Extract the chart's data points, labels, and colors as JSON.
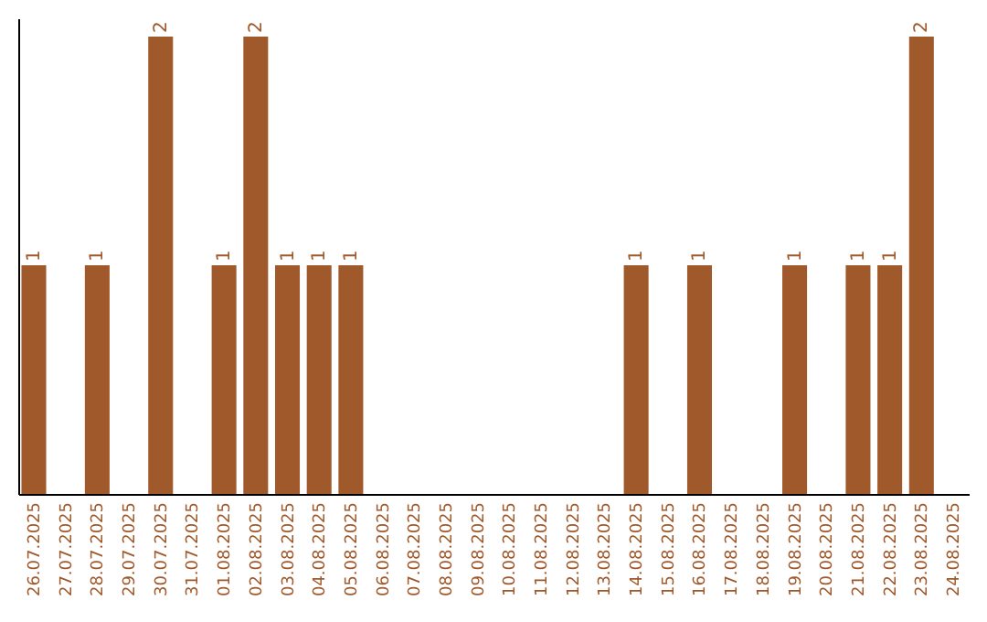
{
  "chart_data": {
    "type": "bar",
    "categories": [
      "26.07.2025",
      "27.07.2025",
      "28.07.2025",
      "29.07.2025",
      "30.07.2025",
      "31.07.2025",
      "01.08.2025",
      "02.08.2025",
      "03.08.2025",
      "04.08.2025",
      "05.08.2025",
      "06.08.2025",
      "07.08.2025",
      "08.08.2025",
      "09.08.2025",
      "10.08.2025",
      "11.08.2025",
      "12.08.2025",
      "13.08.2025",
      "14.08.2025",
      "15.08.2025",
      "16.08.2025",
      "17.08.2025",
      "18.08.2025",
      "19.08.2025",
      "20.08.2025",
      "21.08.2025",
      "22.08.2025",
      "23.08.2025",
      "24.08.2025"
    ],
    "values": [
      1,
      0,
      1,
      0,
      2,
      0,
      1,
      2,
      1,
      1,
      1,
      0,
      0,
      0,
      0,
      0,
      0,
      0,
      0,
      1,
      0,
      1,
      0,
      0,
      1,
      0,
      1,
      1,
      2,
      0
    ],
    "value_labels": [
      "1",
      null,
      "1",
      null,
      "2",
      null,
      "1",
      "2",
      "1",
      "1",
      "1",
      null,
      null,
      null,
      null,
      null,
      null,
      null,
      null,
      "1",
      null,
      "1",
      null,
      null,
      "1",
      null,
      "1",
      "1",
      "2",
      null
    ],
    "color": "#a0592b",
    "ylim": [
      0,
      2.08
    ],
    "tick_labels": "x",
    "grid": false
  }
}
